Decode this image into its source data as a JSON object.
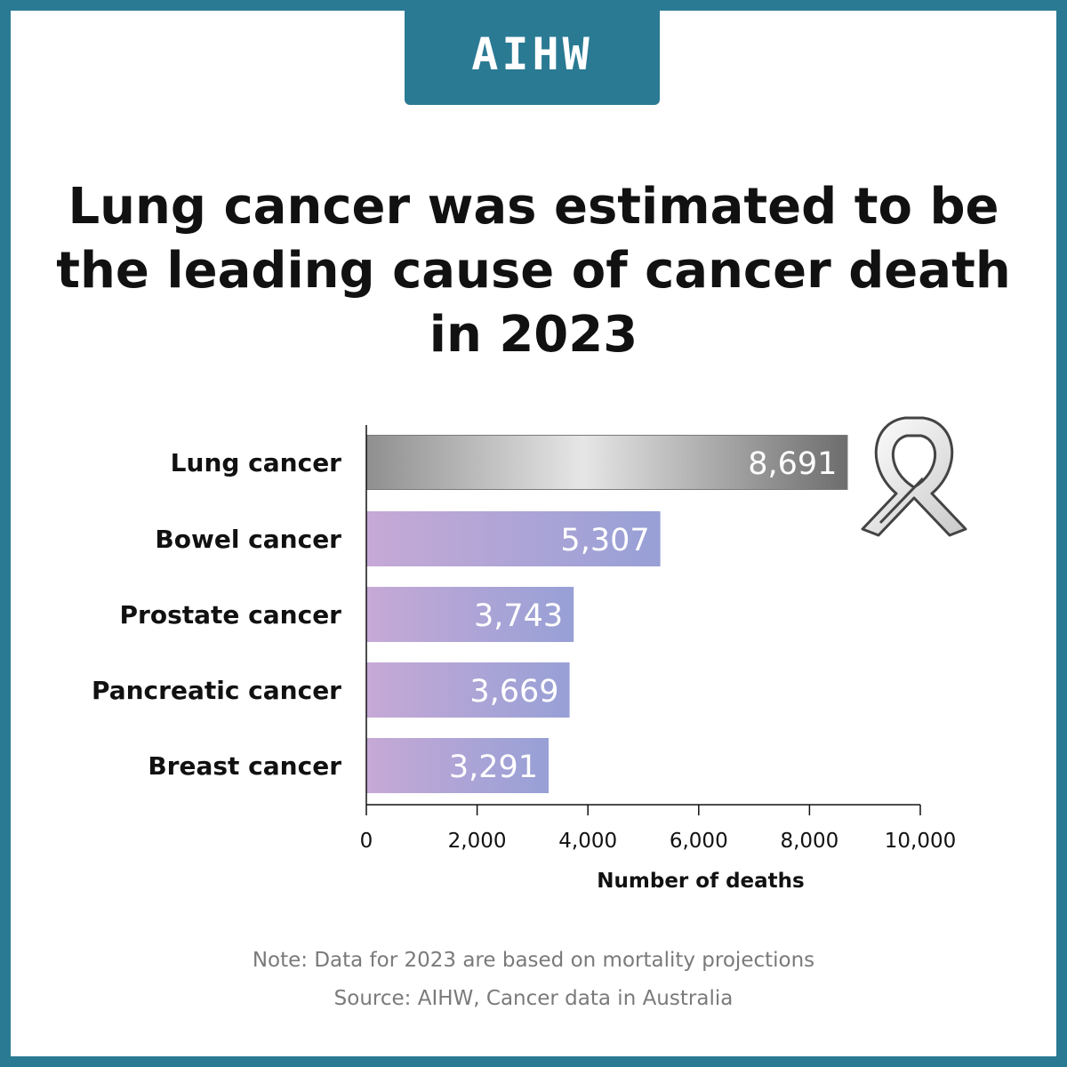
{
  "logo": {
    "text": "AIHW"
  },
  "title": "Lung cancer was estimated to be the leading cause of cancer death in 2023",
  "chart_data": {
    "type": "bar",
    "orientation": "horizontal",
    "categories": [
      "Lung cancer",
      "Bowel cancer",
      "Prostate cancer",
      "Pancreatic cancer",
      "Breast cancer"
    ],
    "values": [
      8691,
      5307,
      3743,
      3669,
      3291
    ],
    "value_labels": [
      "8,691",
      "5,307",
      "3,743",
      "3,669",
      "3,291"
    ],
    "xlabel": "Number of deaths",
    "ylabel": "",
    "xlim": [
      0,
      10000
    ],
    "x_ticks": [
      0,
      2000,
      4000,
      6000,
      8000,
      10000
    ],
    "x_tick_labels": [
      "0",
      "2,000",
      "4,000",
      "6,000",
      "8,000",
      "10,000"
    ],
    "grid": false,
    "legend": "none",
    "highlight_category": "Lung cancer"
  },
  "ribbon_icon": "awareness-ribbon-icon",
  "footer": {
    "note": "Note: Data for 2023 are based on mortality projections",
    "source": "Source: AIHW, Cancer data in Australia"
  },
  "colors": {
    "frame": "#2a7a93",
    "highlight_bar_start": "#9c9c9c",
    "highlight_bar_end": "#6d6d6d",
    "bar_start": "#c4a8d6",
    "bar_end": "#9aa0d6"
  }
}
